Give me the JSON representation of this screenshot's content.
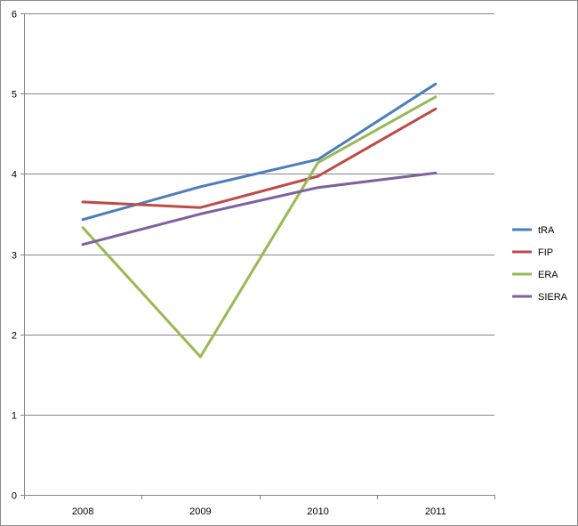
{
  "chart_data": {
    "type": "line",
    "title": "",
    "xlabel": "",
    "ylabel": "",
    "categories": [
      "2008",
      "2009",
      "2010",
      "2011"
    ],
    "ylim": [
      0,
      6
    ],
    "yticks": [
      "0",
      "1",
      "2",
      "3",
      "4",
      "5",
      "6"
    ],
    "grid": "horizontal",
    "legend_position": "right",
    "series": [
      {
        "name": "tRA",
        "color": "#4a7ebb",
        "values": [
          3.43,
          3.84,
          4.18,
          5.12
        ]
      },
      {
        "name": "FIP",
        "color": "#be4b48",
        "values": [
          3.65,
          3.58,
          3.97,
          4.81
        ]
      },
      {
        "name": "ERA",
        "color": "#98b954",
        "values": [
          3.33,
          1.72,
          4.14,
          4.96
        ]
      },
      {
        "name": "SIERA",
        "color": "#7d60a0",
        "values": [
          3.12,
          3.5,
          3.83,
          4.01
        ]
      }
    ]
  }
}
